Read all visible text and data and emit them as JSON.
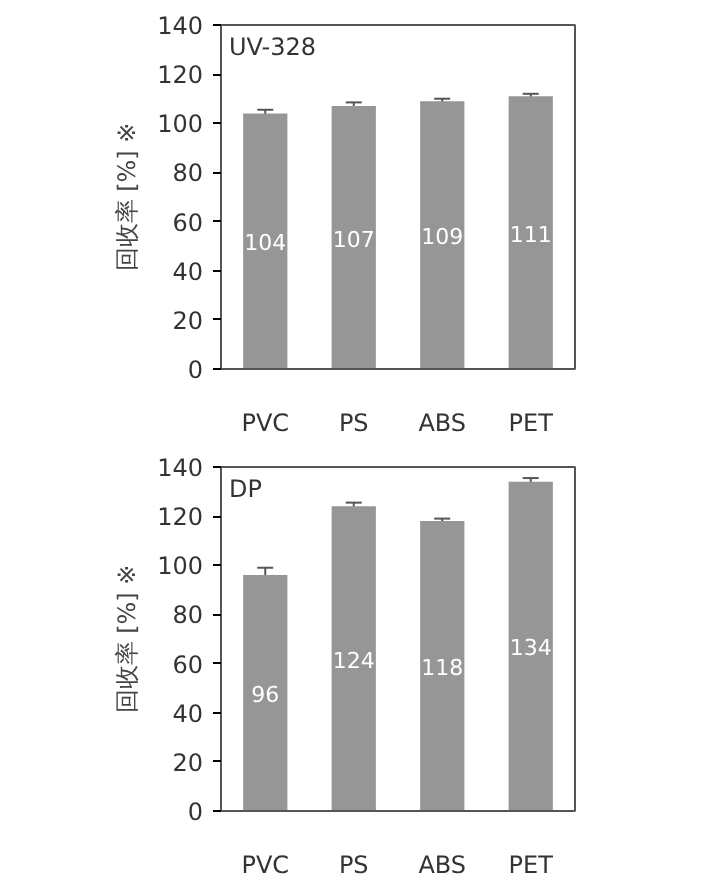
{
  "chart_data": [
    {
      "type": "bar",
      "categories": [
        "PVC",
        "PS",
        "ABS",
        "PET"
      ],
      "values": [
        104,
        107,
        109,
        111
      ],
      "errors": [
        1.5,
        1.5,
        1,
        1
      ],
      "color": "#969696",
      "ylabel": "回收率 [%] ※",
      "ylim": [
        0,
        140
      ],
      "yticks": [
        0,
        20,
        40,
        60,
        80,
        100,
        120,
        140
      ],
      "data_labels": true,
      "grid": false,
      "annotations": [
        "UV-328"
      ]
    },
    {
      "type": "bar",
      "categories": [
        "PVC",
        "PS",
        "ABS",
        "PET"
      ],
      "values": [
        96,
        124,
        118,
        134
      ],
      "errors": [
        3,
        1.5,
        1,
        1.5
      ],
      "color": "#969696",
      "ylabel": "回收率 [%] ※",
      "ylim": [
        0,
        140
      ],
      "yticks": [
        0,
        20,
        40,
        60,
        80,
        100,
        120,
        140
      ],
      "data_labels": true,
      "grid": false,
      "annotations": [
        "DP"
      ]
    }
  ]
}
